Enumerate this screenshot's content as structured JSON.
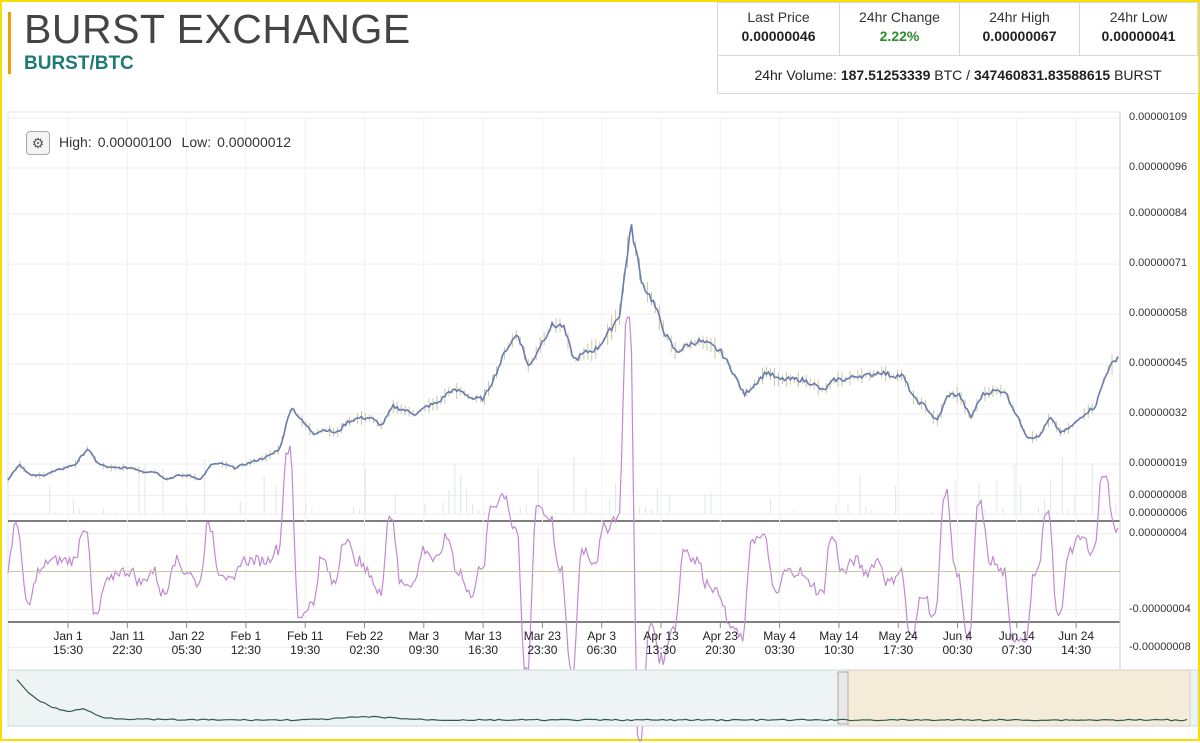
{
  "header": {
    "title": "BURST EXCHANGE",
    "pair": "BURST/BTC"
  },
  "stats": {
    "last_price_label": "Last Price",
    "last_price": "0.00000046",
    "change_label": "24hr Change",
    "change": "2.22%",
    "high_label": "24hr High",
    "high": "0.00000067",
    "low_label": "24hr Low",
    "low": "0.00000041",
    "volume_label": "24hr Volume:",
    "volume_btc": "187.51253339",
    "btc_unit": "BTC /",
    "volume_burst": "347460831.83588615",
    "burst_unit": "BURST"
  },
  "chart_toolbar": {
    "high_label": "High:",
    "high_value": "0.00000100",
    "low_label": "Low:",
    "low_value": "0.00000012"
  },
  "colors": {
    "price_line": "#6a7bb0",
    "candle": "#c8c8a0",
    "macd": "#c08ad0",
    "nav_line": "#2f5a55",
    "nav_selection": "#f4ecd8",
    "nav_bg": "#eef3f3"
  },
  "chart_data": {
    "type": "line",
    "price_axis": [
      "0.00000109",
      "0.00000096",
      "0.00000084",
      "0.00000071",
      "0.00000058",
      "0.00000045",
      "0.00000032",
      "0.00000019",
      "0.00000006"
    ],
    "price_range": [
      6e-08,
      1.09e-06
    ],
    "osc_axis": [
      "0.00000008",
      "0.00000004",
      "-0.00000004",
      "-0.00000008"
    ],
    "x_ticks": [
      {
        "date": "Jan 1",
        "time": "15:30"
      },
      {
        "date": "Jan 11",
        "time": "22:30"
      },
      {
        "date": "Jan 22",
        "time": "05:30"
      },
      {
        "date": "Feb 1",
        "time": "12:30"
      },
      {
        "date": "Feb 11",
        "time": "19:30"
      },
      {
        "date": "Feb 22",
        "time": "02:30"
      },
      {
        "date": "Mar 3",
        "time": "09:30"
      },
      {
        "date": "Mar 13",
        "time": "16:30"
      },
      {
        "date": "Mar 23",
        "time": "23:30"
      },
      {
        "date": "Apr 3",
        "time": "06:30"
      },
      {
        "date": "Apr 13",
        "time": "13:30"
      },
      {
        "date": "Apr 23",
        "time": "20:30"
      },
      {
        "date": "May 4",
        "time": "03:30"
      },
      {
        "date": "May 14",
        "time": "10:30"
      },
      {
        "date": "May 24",
        "time": "17:30"
      },
      {
        "date": "Jun 4",
        "time": "00:30"
      },
      {
        "date": "Jun 14",
        "time": "07:30"
      },
      {
        "date": "Jun 24",
        "time": "14:30"
      }
    ],
    "series": [
      {
        "values": [
          1.5e-07,
          1.9e-07,
          1.6e-07,
          1.6e-07,
          1.7e-07,
          1.8e-07,
          1.9e-07,
          2.3e-07,
          1.9e-07,
          1.8e-07,
          1.8e-07,
          1.8e-07,
          1.7e-07,
          1.7e-07,
          1.5e-07,
          1.6e-07,
          1.6e-07,
          1.5e-07,
          1.9e-07,
          1.9e-07,
          1.8e-07,
          1.9e-07,
          2e-07,
          2.1e-07,
          2.3e-07,
          3.4e-07,
          3e-07,
          2.7e-07,
          2.8e-07,
          2.7e-07,
          3e-07,
          3.1e-07,
          3.1e-07,
          2.9e-07,
          3.4e-07,
          3.3e-07,
          3.2e-07,
          3.4e-07,
          3.5e-07,
          3.8e-07,
          3.8e-07,
          3.6e-07,
          3.6e-07,
          4.2e-07,
          4.9e-07,
          5.3e-07,
          4.4e-07,
          5e-07,
          5.5e-07,
          5.5e-07,
          4.6e-07,
          4.8e-07,
          4.9e-07,
          5.3e-07,
          5.8e-07,
          8.1e-07,
          6.6e-07,
          6.1e-07,
          5.3e-07,
          4.8e-07,
          5e-07,
          5.1e-07,
          5e-07,
          4.8e-07,
          4.3e-07,
          3.7e-07,
          4e-07,
          4.3e-07,
          4.1e-07,
          4.1e-07,
          4.1e-07,
          4e-07,
          3.8e-07,
          4.1e-07,
          4.1e-07,
          4.2e-07,
          4.2e-07,
          4.3e-07,
          4.2e-07,
          4.2e-07,
          3.6e-07,
          3.4e-07,
          3e-07,
          3.7e-07,
          3.7e-07,
          3.1e-07,
          3.7e-07,
          3.8e-07,
          3.8e-07,
          3.2e-07,
          2.6e-07,
          2.6e-07,
          3.1e-07,
          2.7e-07,
          2.9e-07,
          3.2e-07,
          3.4e-07,
          4.3e-07,
          4.7e-07
        ]
      }
    ]
  }
}
